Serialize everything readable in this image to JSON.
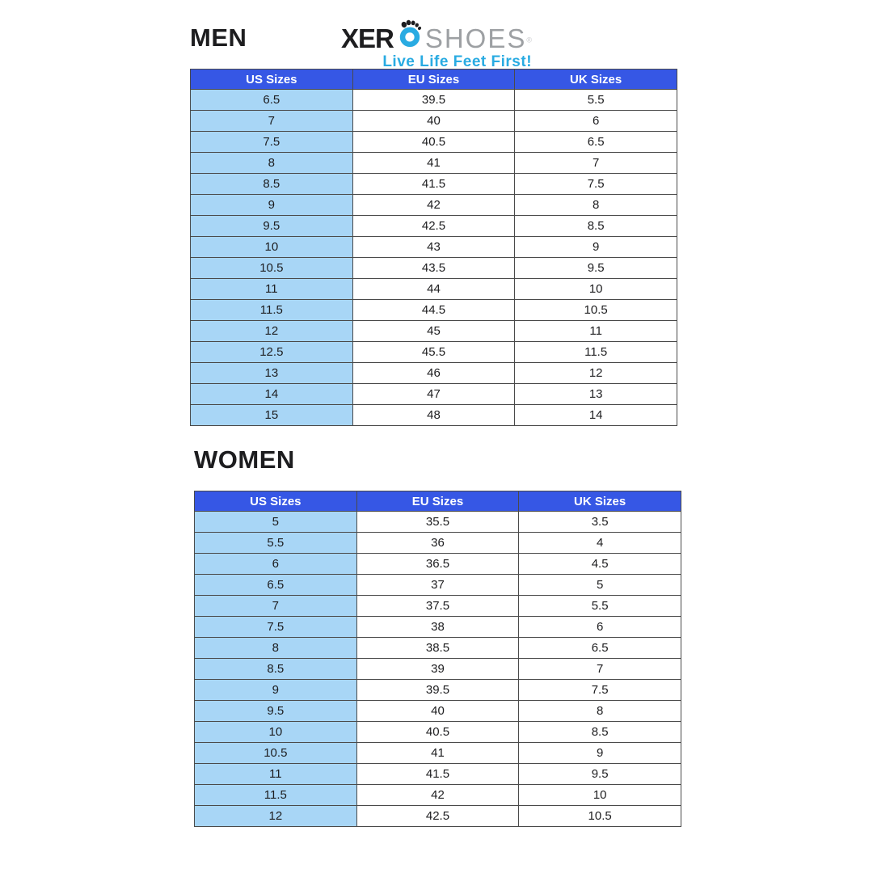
{
  "logo": {
    "wordmark_left": "XER",
    "wordmark_right": "SHOES",
    "registered": "®",
    "tagline": "Live Life Feet First!",
    "foot_icon": "foot-o-icon"
  },
  "colors": {
    "header-bg": "#3657e5",
    "header-text": "#ffffff",
    "us-col-bg": "#a8d6f6",
    "row-bg": "#ffffff",
    "border": "#4a4a4a",
    "brand-blue": "#29abe2",
    "brand-gray": "#9da0a3",
    "ink": "#1d1d1f"
  },
  "chart_data": [
    {
      "type": "table",
      "title": "MEN",
      "columns": [
        "US Sizes",
        "EU Sizes",
        "UK Sizes"
      ],
      "rows": [
        [
          "6.5",
          "39.5",
          "5.5"
        ],
        [
          "7",
          "40",
          "6"
        ],
        [
          "7.5",
          "40.5",
          "6.5"
        ],
        [
          "8",
          "41",
          "7"
        ],
        [
          "8.5",
          "41.5",
          "7.5"
        ],
        [
          "9",
          "42",
          "8"
        ],
        [
          "9.5",
          "42.5",
          "8.5"
        ],
        [
          "10",
          "43",
          "9"
        ],
        [
          "10.5",
          "43.5",
          "9.5"
        ],
        [
          "11",
          "44",
          "10"
        ],
        [
          "11.5",
          "44.5",
          "10.5"
        ],
        [
          "12",
          "45",
          "11"
        ],
        [
          "12.5",
          "45.5",
          "11.5"
        ],
        [
          "13",
          "46",
          "12"
        ],
        [
          "14",
          "47",
          "13"
        ],
        [
          "15",
          "48",
          "14"
        ]
      ]
    },
    {
      "type": "table",
      "title": "WOMEN",
      "columns": [
        "US Sizes",
        "EU Sizes",
        "UK Sizes"
      ],
      "rows": [
        [
          "5",
          "35.5",
          "3.5"
        ],
        [
          "5.5",
          "36",
          "4"
        ],
        [
          "6",
          "36.5",
          "4.5"
        ],
        [
          "6.5",
          "37",
          "5"
        ],
        [
          "7",
          "37.5",
          "5.5"
        ],
        [
          "7.5",
          "38",
          "6"
        ],
        [
          "8",
          "38.5",
          "6.5"
        ],
        [
          "8.5",
          "39",
          "7"
        ],
        [
          "9",
          "39.5",
          "7.5"
        ],
        [
          "9.5",
          "40",
          "8"
        ],
        [
          "10",
          "40.5",
          "8.5"
        ],
        [
          "10.5",
          "41",
          "9"
        ],
        [
          "11",
          "41.5",
          "9.5"
        ],
        [
          "11.5",
          "42",
          "10"
        ],
        [
          "12",
          "42.5",
          "10.5"
        ]
      ]
    }
  ]
}
